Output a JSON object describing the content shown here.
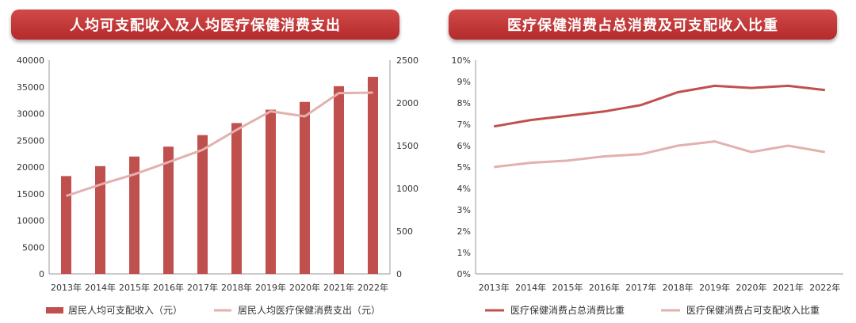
{
  "panels": {
    "left_title": "人均可支配收入及人均医疗保健消费支出",
    "right_title": "医疗保健消费占总消费及可支配收入比重"
  },
  "colors": {
    "bar": "#c0504d",
    "line_light": "#e2b1ae",
    "line_dark": "#c0504d"
  },
  "chart_data": [
    {
      "type": "bar",
      "categories": [
        "2013年",
        "2014年",
        "2015年",
        "2016年",
        "2017年",
        "2018年",
        "2019年",
        "2020年",
        "2021年",
        "2022年"
      ],
      "series": [
        {
          "name": "居民人均可支配收入（元）",
          "type": "bar",
          "axis": "left",
          "values": [
            18311,
            20167,
            21966,
            23821,
            25974,
            28228,
            30733,
            32189,
            35128,
            36883
          ]
        },
        {
          "name": "居民人均医疗保健消费支出（元）",
          "type": "line",
          "axis": "right",
          "values": [
            912,
            1045,
            1165,
            1307,
            1451,
            1685,
            1902,
            1843,
            2115,
            2120
          ]
        }
      ],
      "left_axis": {
        "ylim": [
          0,
          40000
        ],
        "ticks": [
          "0",
          "5000",
          "10000",
          "15000",
          "20000",
          "25000",
          "30000",
          "35000",
          "40000"
        ]
      },
      "right_axis": {
        "ylim": [
          0,
          2500
        ],
        "ticks": [
          "0",
          "500",
          "1000",
          "1500",
          "2000",
          "2500"
        ]
      },
      "legend": "bottom"
    },
    {
      "type": "line",
      "categories": [
        "2013年",
        "2014年",
        "2015年",
        "2016年",
        "2017年",
        "2018年",
        "2019年",
        "2020年",
        "2021年",
        "2022年"
      ],
      "series": [
        {
          "name": "医疗保健消费占总消费比重",
          "values": [
            6.9,
            7.2,
            7.4,
            7.6,
            7.9,
            8.5,
            8.8,
            8.7,
            8.8,
            8.6
          ]
        },
        {
          "name": "医疗保健消费占可支配收入比重",
          "values": [
            5.0,
            5.2,
            5.3,
            5.5,
            5.6,
            6.0,
            6.2,
            5.7,
            6.0,
            5.7
          ]
        }
      ],
      "ylim": [
        0,
        10
      ],
      "ticks": [
        "0%",
        "1%",
        "2%",
        "3%",
        "4%",
        "5%",
        "6%",
        "7%",
        "8%",
        "9%",
        "10%"
      ],
      "legend": "bottom"
    }
  ]
}
